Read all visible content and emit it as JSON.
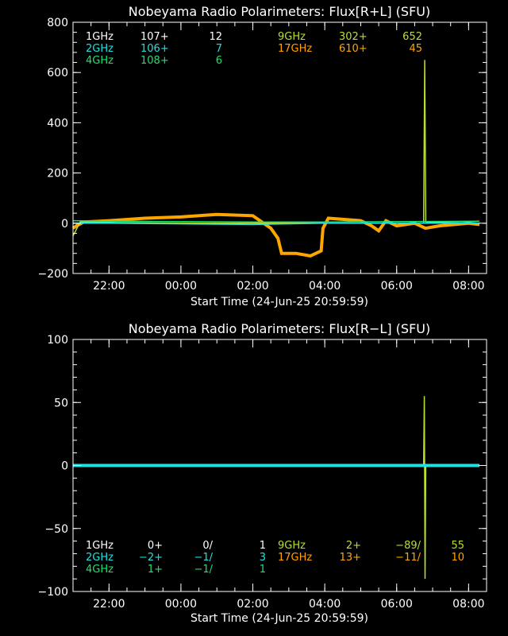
{
  "colors": {
    "bg": "#000000",
    "fg": "#ffffff",
    "f1": "#ffffff",
    "f2": "#22e0e0",
    "f4": "#20e070",
    "f9": "#b8e030",
    "f17": "#ffa500"
  },
  "chart_data": [
    {
      "type": "line",
      "title": "Nobeyama Radio Polarimeters: Flux[R+L] (SFU)",
      "xlabel": "Start Time (24-Jun-25 20:59:59)",
      "ylabel": "",
      "ylim": [
        -200,
        800
      ],
      "yticks": [
        "800",
        "600",
        "400",
        "200",
        "0",
        "−200"
      ],
      "xticks": [
        "22:00",
        "00:00",
        "02:00",
        "04:00",
        "06:00",
        "08:00"
      ],
      "legend": [
        {
          "name": "1GHz",
          "a": "107+",
          "b": "12",
          "color": "#ffffff"
        },
        {
          "name": "2GHz",
          "a": "106+",
          "b": "7",
          "color": "#22e0e0"
        },
        {
          "name": "4GHz",
          "a": "108+",
          "b": "6",
          "color": "#20e070"
        },
        {
          "name": "9GHz",
          "a": "302+",
          "b": "652",
          "color": "#b8e030"
        },
        {
          "name": "17GHz",
          "a": "610+",
          "b": "45",
          "color": "#ffa500"
        }
      ],
      "series": [
        {
          "name": "17GHz",
          "color": "#ffa500",
          "points": [
            [
              21.0,
              -20
            ],
            [
              21.1,
              -10
            ],
            [
              21.3,
              5
            ],
            [
              22,
              10
            ],
            [
              23,
              20
            ],
            [
              0,
              25
            ],
            [
              1,
              35
            ],
            [
              2,
              30
            ],
            [
              2.2,
              10
            ],
            [
              2.5,
              -20
            ],
            [
              2.7,
              -60
            ],
            [
              2.8,
              -120
            ],
            [
              3.2,
              -120
            ],
            [
              3.6,
              -130
            ],
            [
              3.9,
              -110
            ],
            [
              3.95,
              -20
            ],
            [
              4.1,
              20
            ],
            [
              5,
              10
            ],
            [
              5.3,
              -10
            ],
            [
              5.5,
              -30
            ],
            [
              5.7,
              10
            ],
            [
              6,
              -10
            ],
            [
              6.5,
              0
            ],
            [
              6.8,
              -20
            ],
            [
              7.2,
              -10
            ],
            [
              7.6,
              -5
            ],
            [
              8,
              0
            ],
            [
              8.3,
              -5
            ]
          ]
        },
        {
          "name": "9GHz",
          "color": "#b8e030",
          "points": [
            [
              21.0,
              -50
            ],
            [
              21.2,
              5
            ],
            [
              22,
              3
            ],
            [
              0,
              0
            ],
            [
              2,
              0
            ],
            [
              4,
              0
            ],
            [
              6,
              0
            ],
            [
              6.75,
              0
            ],
            [
              6.78,
              650
            ],
            [
              6.81,
              5
            ],
            [
              8.3,
              0
            ]
          ]
        },
        {
          "name": "2GHz",
          "color": "#22e0e0",
          "points": [
            [
              21.0,
              0
            ],
            [
              22,
              0
            ],
            [
              2,
              -5
            ],
            [
              4,
              0
            ],
            [
              8.3,
              0
            ]
          ]
        },
        {
          "name": "4GHz",
          "color": "#20e070",
          "points": [
            [
              21.0,
              10
            ],
            [
              22,
              8
            ],
            [
              2,
              5
            ],
            [
              4,
              5
            ],
            [
              8.3,
              8
            ]
          ]
        }
      ]
    },
    {
      "type": "line",
      "title": "Nobeyama Radio Polarimeters: Flux[R−L] (SFU)",
      "xlabel": "Start Time (24-Jun-25 20:59:59)",
      "ylabel": "",
      "ylim": [
        -100,
        100
      ],
      "yticks": [
        "100",
        "50",
        "0",
        "−50",
        "−100"
      ],
      "xticks": [
        "22:00",
        "00:00",
        "02:00",
        "04:00",
        "06:00",
        "08:00"
      ],
      "legend": [
        {
          "name": "1GHz",
          "a": "0+",
          "b": "0/",
          "c": "1",
          "color": "#ffffff"
        },
        {
          "name": "2GHz",
          "a": "−2+",
          "b": "−1/",
          "c": "3",
          "color": "#22e0e0"
        },
        {
          "name": "4GHz",
          "a": "1+",
          "b": "−1/",
          "c": "1",
          "color": "#20e070"
        },
        {
          "name": "9GHz",
          "a": "2+",
          "b": "−89/",
          "c": "55",
          "color": "#b8e030"
        },
        {
          "name": "17GHz",
          "a": "13+",
          "b": "−11/",
          "c": "10",
          "color": "#ffa500"
        }
      ],
      "series": [
        {
          "name": "17GHz",
          "color": "#ffa500",
          "points": [
            [
              21.0,
              0
            ],
            [
              22,
              0
            ],
            [
              2,
              0
            ],
            [
              4,
              0
            ],
            [
              8.3,
              0
            ]
          ]
        },
        {
          "name": "9GHz",
          "color": "#b8e030",
          "points": [
            [
              21.0,
              0
            ],
            [
              6.75,
              0
            ],
            [
              6.77,
              55
            ],
            [
              6.79,
              -90
            ],
            [
              6.81,
              0
            ],
            [
              8.3,
              0
            ]
          ]
        },
        {
          "name": "2GHz",
          "color": "#22e0e0",
          "points": [
            [
              21.0,
              0
            ],
            [
              8.3,
              0
            ]
          ]
        }
      ]
    }
  ]
}
